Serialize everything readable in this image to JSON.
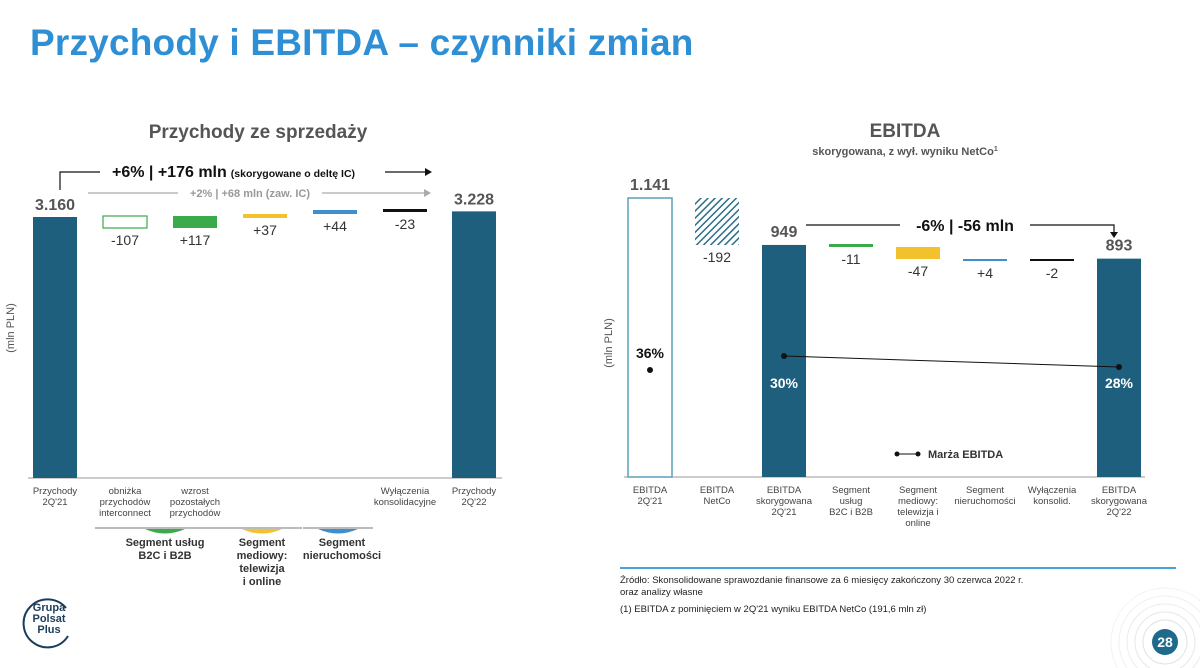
{
  "page": {
    "title": "Przychody i EBITDA – czynniki zmian",
    "source_line1": "Źródło: Skonsolidowane sprawozdanie finansowe za 6 miesięcy zakończony 30 czerwca 2022 r.",
    "source_line2": "oraz analizy własne",
    "footnote": "(1) EBITDA z pominięciem w 2Q'21 wyniku EBITDA NetCo (191,6 mln zł)",
    "page_number": "28",
    "logo_line1": "Grupa",
    "logo_line2": "Polsat",
    "logo_line3": "Plus"
  },
  "chart_data": [
    {
      "type": "bar",
      "subtype": "waterfall",
      "title": "Przychody ze sprzedaży",
      "ylabel": "(mln PLN)",
      "categories": [
        "Przychody 2Q'21",
        "obniżka przychodów interconnect",
        "wzrost pozostałych przychodów",
        "",
        "",
        "Wyłączenia konsolidacyjne",
        "Przychody 2Q'22"
      ],
      "category_lines": [
        [
          "Przychody",
          "2Q'21"
        ],
        [
          "obniżka",
          "przychodów",
          "interconnect"
        ],
        [
          "wzrost",
          "pozostałych",
          "przychodów"
        ],
        [],
        [],
        [
          "Wyłączenia",
          "konsolidacyjne"
        ],
        [
          "Przychody",
          "2Q'22"
        ]
      ],
      "values": [
        3160,
        -107,
        117,
        37,
        44,
        -23,
        3228
      ],
      "value_labels": [
        "3.160",
        "-107",
        "+117",
        "+37",
        "+44",
        "-23",
        "3.228"
      ],
      "bar_kinds": [
        "total",
        "delta",
        "delta",
        "delta",
        "delta",
        "delta",
        "total"
      ],
      "bar_colors": [
        "#1d5f7d",
        "#ffffff",
        "#3aaa4a",
        "#f2c12e",
        "#3f8fce",
        "#111111",
        "#1d5f7d"
      ],
      "groups": [
        {
          "label": "Segment usług B2C i B2B",
          "lines": [
            "Segment usług",
            "B2C i B2B"
          ],
          "color": "#3aaa4a"
        },
        {
          "label": "Segment mediowy: telewizja i online",
          "lines": [
            "Segment",
            "mediowy:",
            "telewizja",
            "i online"
          ],
          "color": "#f2c12e"
        },
        {
          "label": "Segment nieruchomości",
          "lines": [
            "Segment",
            "nieruchomości"
          ],
          "color": "#3f8fce"
        }
      ],
      "annotation_main": "+6% | +176 mln",
      "annotation_main_suffix": "(skorygowane o deltę IC)",
      "annotation_secondary": "+2% | +68 mln (zaw. IC)"
    },
    {
      "type": "bar",
      "subtype": "waterfall",
      "title": "EBITDA",
      "subtitle": "skorygowana, z wył. wyniku NetCo",
      "subtitle_sup": "1",
      "ylabel": "(mln PLN)",
      "categories": [
        "EBITDA 2Q'21",
        "EBITDA NetCo",
        "EBITDA skorygowana 2Q'21",
        "Segment usług B2C i B2B",
        "Segment mediowy: telewizja i online",
        "Segment nieruchomości",
        "Wyłączenia konsolid.",
        "EBITDA skorygowana 2Q'22"
      ],
      "category_lines": [
        [
          "EBITDA",
          "2Q'21"
        ],
        [
          "EBITDA",
          "NetCo"
        ],
        [
          "EBITDA",
          "skorygowana",
          "2Q'21"
        ],
        [
          "Segment",
          "usług",
          "B2C i B2B"
        ],
        [
          "Segment",
          "mediowy:",
          "telewizja i",
          "online"
        ],
        [
          "Segment",
          "nieruchomości"
        ],
        [
          "Wyłączenia",
          "konsolid."
        ],
        [
          "EBITDA",
          "skorygowana",
          "2Q'22"
        ]
      ],
      "values": [
        1141,
        -192,
        949,
        -11,
        -47,
        4,
        -2,
        893
      ],
      "value_labels": [
        "1.141",
        "-192",
        "949",
        "-11",
        "-47",
        "+4",
        "-2",
        "893"
      ],
      "bar_kinds": [
        "total-outline",
        "delta-hatched",
        "total",
        "delta",
        "delta",
        "delta",
        "delta",
        "total"
      ],
      "bar_colors": [
        "#5aa0b8",
        "#2d6f86",
        "#1d5f7d",
        "#3aaa4a",
        "#f2c12e",
        "#3f8fce",
        "#111111",
        "#1d5f7d"
      ],
      "margin_series": {
        "name": "Marża EBITDA",
        "values": [
          36,
          null,
          30,
          null,
          null,
          null,
          null,
          28
        ],
        "labels": [
          "36%",
          "",
          "30%",
          "",
          "",
          "",
          "",
          "28%"
        ]
      },
      "annotation_main": "-6% | -56 mln"
    }
  ]
}
